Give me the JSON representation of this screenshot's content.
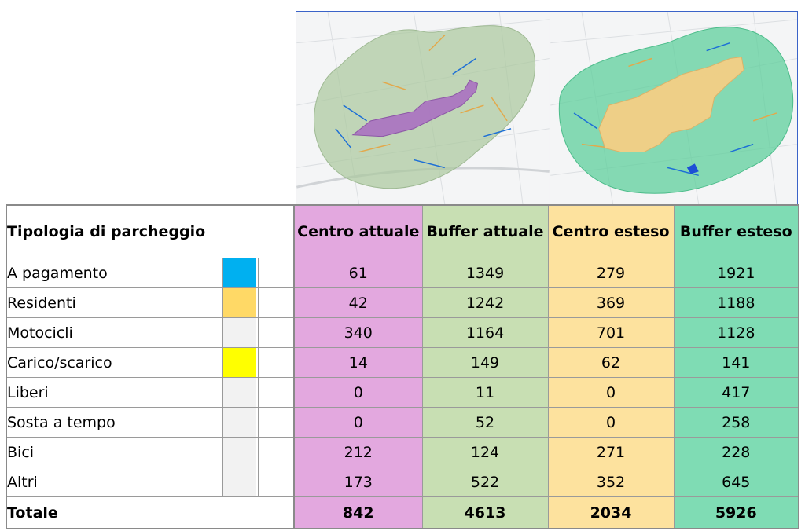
{
  "table": {
    "header": {
      "tipologia": "Tipologia di parcheggio",
      "columns": [
        "Centro attuale",
        "Buffer attuale",
        "Centro esteso",
        "Buffer esteso"
      ]
    },
    "rows": [
      {
        "label": "A pagamento",
        "swatch": "#00b0f0",
        "values": [
          "61",
          "1349",
          "279",
          "1921"
        ]
      },
      {
        "label": "Residenti",
        "swatch": "#ffd966",
        "values": [
          "42",
          "1242",
          "369",
          "1188"
        ]
      },
      {
        "label": "Motocicli",
        "swatch": "#f2f2f2",
        "values": [
          "340",
          "1164",
          "701",
          "1128"
        ]
      },
      {
        "label": "Carico/scarico",
        "swatch": "#ffff00",
        "values": [
          "14",
          "149",
          "62",
          "141"
        ]
      },
      {
        "label": "Liberi",
        "swatch": "#f2f2f2",
        "values": [
          "0",
          "11",
          "0",
          "417"
        ]
      },
      {
        "label": "Sosta a tempo",
        "swatch": "#f2f2f2",
        "values": [
          "0",
          "52",
          "0",
          "258"
        ]
      },
      {
        "label": "Bici",
        "swatch": "#f2f2f2",
        "values": [
          "212",
          "124",
          "271",
          "228"
        ]
      },
      {
        "label": "Altri",
        "swatch": "#f2f2f2",
        "values": [
          "173",
          "522",
          "352",
          "645"
        ]
      }
    ],
    "total": {
      "label": "Totale",
      "values": [
        "842",
        "4613",
        "2034",
        "5926"
      ]
    }
  },
  "colors": {
    "centro_attuale": "#e3a8df",
    "buffer_attuale": "#c8dfb3",
    "centro_esteso": "#fde29e",
    "buffer_esteso": "#7fdcb4",
    "map_border": "#3a63c8"
  }
}
